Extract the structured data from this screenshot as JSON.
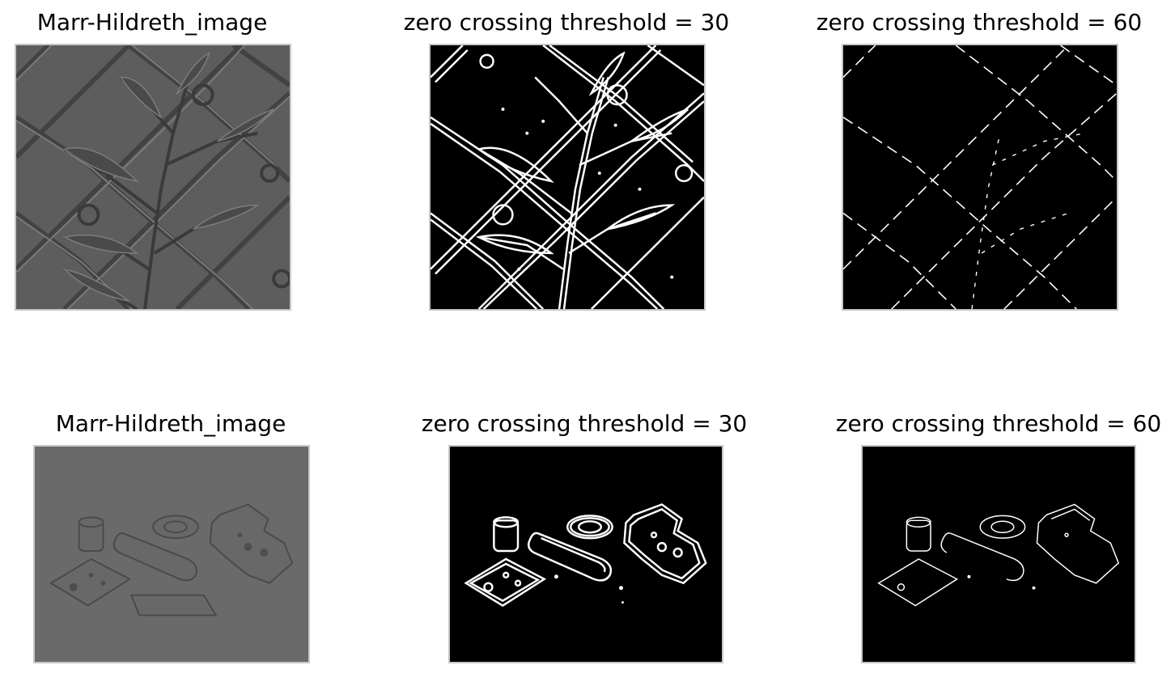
{
  "figure": {
    "row1": {
      "col1": {
        "title": "Marr-Hildreth_image"
      },
      "col2": {
        "title": "zero crossing threshold = 30"
      },
      "col3": {
        "title": "zero crossing threshold = 60"
      }
    },
    "row2": {
      "col1": {
        "title": "Marr-Hildreth_image"
      },
      "col2": {
        "title": "zero crossing threshold = 30"
      },
      "col3": {
        "title": "zero crossing threshold = 60"
      }
    }
  },
  "colors": {
    "gray_background": "#5b5b5b",
    "gray_background_2": "#6a6a6a",
    "edge_background": "#000000",
    "edge_line": "#ffffff"
  }
}
